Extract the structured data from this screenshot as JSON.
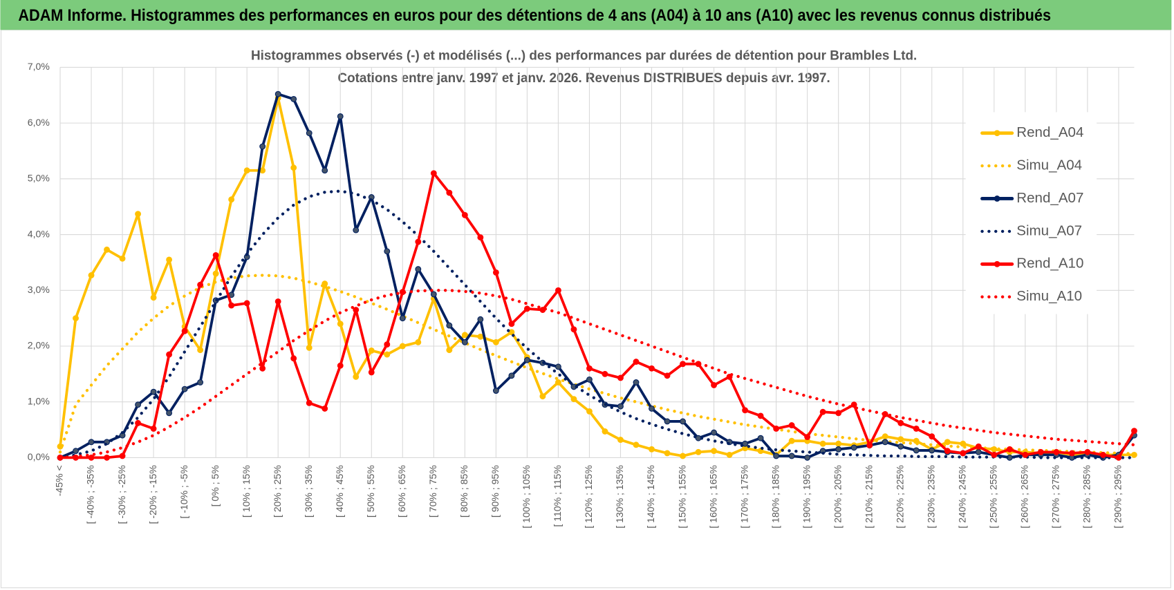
{
  "page_title": "ADAM Informe. Histogrammes des performances en euros pour des détentions de 4 ans (A04) à 10 ans (A10) avec les revenus connus distribués",
  "chart_data": {
    "type": "line",
    "title": "Histogrammes observés (-) et modélisés (...) des performances par durées de détention pour Brambles Ltd.",
    "subtitle": "Cotations entre janv. 1997 et janv. 2026. Revenus DISTRIBUES depuis avr. 1997.",
    "categories": [
      "-45% <",
      null,
      "[ -40% ; -35%",
      null,
      "[ -30% ; -25%",
      null,
      "[ -20% ; -15%",
      null,
      "[ -10% ; -5%",
      null,
      "[ 0% ; 5%",
      null,
      "[ 10% ; 15%",
      null,
      "[ 20% ; 25%",
      null,
      "[ 30% ; 35%",
      null,
      "[ 40% ; 45%",
      null,
      "[ 50% ; 55%",
      null,
      "[ 60% ; 65%",
      null,
      "[ 70% ; 75%",
      null,
      "[ 80% ; 85%",
      null,
      "[ 90% ; 95%",
      null,
      "[ 100% ; 105%",
      null,
      "[ 110% ; 115%",
      null,
      "[ 120% ; 125%",
      null,
      "[ 130% ; 135%",
      null,
      "[ 140% ; 145%",
      null,
      "[ 150% ; 155%",
      null,
      "[ 160% ; 165%",
      null,
      "[ 170% ; 175%",
      null,
      "[ 180% ; 185%",
      null,
      "[ 190% ; 195%",
      null,
      "[ 200% ; 205%",
      null,
      "[ 210% ; 215%",
      null,
      "[ 220% ; 225%",
      null,
      "[ 230% ; 235%",
      null,
      "[ 240% ; 245%",
      null,
      "[ 250% ; 255%",
      null,
      "[ 260% ; 265%",
      null,
      "[ 270% ; 275%",
      null,
      "[ 280% ; 285%",
      null,
      "[ 290% ; 295%",
      null
    ],
    "series": [
      {
        "name": "Rend_A04",
        "color": "#ffc000",
        "style": "solid",
        "markers": true,
        "values": [
          0.2,
          2.5,
          3.27,
          3.73,
          3.57,
          4.37,
          2.87,
          3.55,
          2.35,
          1.93,
          3.3,
          4.63,
          5.15,
          5.15,
          6.45,
          5.2,
          1.97,
          3.12,
          2.4,
          1.45,
          1.92,
          1.85,
          2.0,
          2.07,
          2.85,
          1.93,
          2.2,
          2.17,
          2.07,
          2.25,
          1.8,
          1.1,
          1.35,
          1.05,
          0.83,
          0.47,
          0.32,
          0.23,
          0.15,
          0.08,
          0.03,
          0.1,
          0.12,
          0.05,
          0.17,
          0.12,
          0.05,
          0.3,
          0.3,
          0.25,
          0.25,
          0.22,
          0.28,
          0.38,
          0.33,
          0.3,
          0.15,
          0.28,
          0.25,
          0.17,
          0.15,
          0.1,
          0.1,
          0.08,
          0.1,
          0.05,
          0.05,
          0.05,
          0.05,
          0.05
        ]
      },
      {
        "name": "Simu_A04",
        "color": "#ffc000",
        "style": "dotted",
        "markers": false,
        "values": [
          0.1,
          0.95,
          1.3,
          1.65,
          1.95,
          2.25,
          2.5,
          2.72,
          2.9,
          3.05,
          3.15,
          3.22,
          3.26,
          3.27,
          3.26,
          3.22,
          3.15,
          3.07,
          2.98,
          2.88,
          2.77,
          2.66,
          2.54,
          2.42,
          2.3,
          2.18,
          2.06,
          1.94,
          1.83,
          1.72,
          1.61,
          1.51,
          1.41,
          1.32,
          1.23,
          1.15,
          1.07,
          1.0,
          0.93,
          0.86,
          0.8,
          0.74,
          0.69,
          0.64,
          0.59,
          0.55,
          0.51,
          0.47,
          0.43,
          0.4,
          0.37,
          0.34,
          0.31,
          0.29,
          0.27,
          0.25,
          0.23,
          0.21,
          0.19,
          0.18,
          0.16,
          0.15,
          0.14,
          0.13,
          0.12,
          0.11,
          0.1,
          0.09,
          0.08,
          0.07
        ]
      },
      {
        "name": "Rend_A07",
        "color": "#002060",
        "style": "solid",
        "markers": true,
        "values": [
          0,
          0.12,
          0.28,
          0.28,
          0.4,
          0.95,
          1.18,
          0.8,
          1.23,
          1.35,
          2.82,
          2.92,
          3.6,
          5.58,
          6.52,
          6.43,
          5.82,
          5.15,
          6.12,
          4.08,
          4.67,
          3.7,
          2.5,
          3.38,
          2.93,
          2.37,
          2.07,
          2.48,
          1.2,
          1.47,
          1.75,
          1.7,
          1.63,
          1.27,
          1.4,
          0.95,
          0.92,
          1.35,
          0.88,
          0.65,
          0.65,
          0.35,
          0.45,
          0.28,
          0.25,
          0.35,
          0.03,
          0.03,
          0,
          0.12,
          0.15,
          0.18,
          0.22,
          0.28,
          0.2,
          0.13,
          0.13,
          0.1,
          0.08,
          0.1,
          0.05,
          0,
          0.05,
          0.05,
          0.05,
          0,
          0.05,
          0,
          0.05,
          0.4
        ]
      },
      {
        "name": "Simu_A07",
        "color": "#002060",
        "style": "dotted",
        "markers": false,
        "values": [
          0,
          0.05,
          0.12,
          0.25,
          0.45,
          0.72,
          1.05,
          1.45,
          1.9,
          2.35,
          2.8,
          3.25,
          3.65,
          4.0,
          4.3,
          4.53,
          4.68,
          4.76,
          4.78,
          4.73,
          4.62,
          4.45,
          4.23,
          3.98,
          3.7,
          3.4,
          3.1,
          2.8,
          2.5,
          2.22,
          1.96,
          1.72,
          1.5,
          1.3,
          1.12,
          0.96,
          0.82,
          0.7,
          0.6,
          0.51,
          0.43,
          0.36,
          0.3,
          0.25,
          0.21,
          0.17,
          0.14,
          0.12,
          0.1,
          0.08,
          0.06,
          0.05,
          0.04,
          0.03,
          0.03,
          0.02,
          0.02,
          0.02,
          0.01,
          0.01,
          0.01,
          0.01,
          0.01,
          0,
          0,
          0,
          0,
          0,
          0,
          0
        ]
      },
      {
        "name": "Rend_A10",
        "color": "#ff0000",
        "style": "solid",
        "markers": true,
        "values": [
          0,
          0,
          0,
          0,
          0.03,
          0.62,
          0.52,
          1.85,
          2.27,
          3.1,
          3.63,
          2.73,
          2.77,
          1.6,
          2.8,
          1.78,
          0.98,
          0.88,
          1.65,
          2.65,
          1.53,
          2.03,
          2.97,
          3.87,
          5.1,
          4.75,
          4.35,
          3.95,
          3.32,
          2.4,
          2.67,
          2.65,
          3.0,
          2.3,
          1.6,
          1.5,
          1.43,
          1.72,
          1.6,
          1.47,
          1.68,
          1.68,
          1.3,
          1.45,
          0.85,
          0.75,
          0.52,
          0.58,
          0.37,
          0.82,
          0.8,
          0.95,
          0.22,
          0.78,
          0.62,
          0.52,
          0.38,
          0.12,
          0.08,
          0.2,
          0.05,
          0.15,
          0.05,
          0.1,
          0.1,
          0.08,
          0.1,
          0.05,
          0,
          0.48
        ]
      },
      {
        "name": "Simu_A10",
        "color": "#ff0000",
        "style": "dotted",
        "markers": false,
        "values": [
          0,
          0.02,
          0.05,
          0.1,
          0.18,
          0.28,
          0.4,
          0.55,
          0.72,
          0.9,
          1.1,
          1.3,
          1.5,
          1.7,
          1.9,
          2.1,
          2.28,
          2.45,
          2.6,
          2.72,
          2.83,
          2.91,
          2.96,
          2.99,
          3.0,
          3.0,
          2.98,
          2.95,
          2.9,
          2.84,
          2.76,
          2.68,
          2.6,
          2.5,
          2.4,
          2.3,
          2.2,
          2.1,
          2.0,
          1.9,
          1.8,
          1.7,
          1.6,
          1.5,
          1.42,
          1.34,
          1.26,
          1.18,
          1.1,
          1.03,
          0.96,
          0.9,
          0.84,
          0.78,
          0.72,
          0.67,
          0.62,
          0.57,
          0.53,
          0.49,
          0.45,
          0.42,
          0.39,
          0.36,
          0.33,
          0.31,
          0.29,
          0.27,
          0.25,
          0.23
        ]
      }
    ],
    "ylim": [
      0,
      7
    ],
    "yticks": [
      {
        "value": 0,
        "label": "0,0%"
      },
      {
        "value": 1,
        "label": "1,0%"
      },
      {
        "value": 2,
        "label": "2,0%"
      },
      {
        "value": 3,
        "label": "3,0%"
      },
      {
        "value": 4,
        "label": "4,0%"
      },
      {
        "value": 5,
        "label": "5,0%"
      },
      {
        "value": 6,
        "label": "6,0%"
      },
      {
        "value": 7,
        "label": "7,0%"
      }
    ],
    "grid": true,
    "legend": "right"
  }
}
